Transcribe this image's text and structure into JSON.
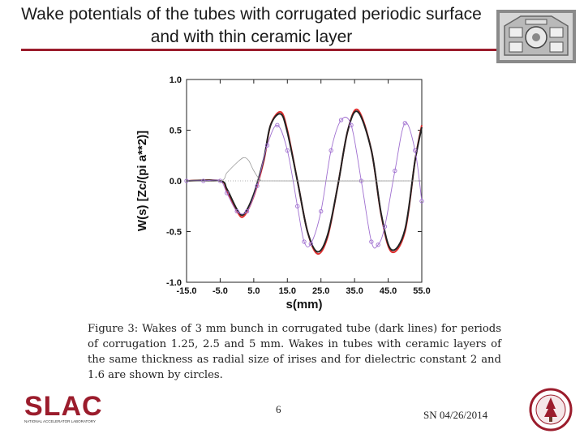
{
  "slide": {
    "title": "Wake potentials of the tubes with corrugated periodic surface and with thin ceramic layer",
    "caption": "Figure 3: Wakes of 3 mm bunch in corrugated tube (dark lines) for periods of corrugation 1.25, 2.5 and 5 mm. Wakes in tubes with ceramic layers of the same thickness as radial size of irises and for dielectric constant 2 and 1.6 are shown by circles.",
    "page_number": "6",
    "date": "SN 04/26/2014"
  },
  "logo": {
    "text": "SLAC",
    "subtext": "NATIONAL ACCELERATOR LABORATORY",
    "color": "#9b1c2c"
  },
  "chart_data": {
    "type": "line",
    "xlabel": "s(mm)",
    "ylabel": "W(s) [Zc/(pi a**2)]",
    "xlim": [
      -15,
      55
    ],
    "ylim": [
      -1.0,
      1.0
    ],
    "xticks": [
      "-15.0",
      "-5.0",
      "5.0",
      "15.0",
      "25.0",
      "35.0",
      "45.0",
      "55.0"
    ],
    "yticks": [
      "1.0",
      "0.5",
      "0.0",
      "-0.5",
      "-1.0"
    ],
    "grid": false,
    "series": [
      {
        "color": "#e03030",
        "style": "line",
        "x": [
          -15,
          -5,
          -3,
          0,
          2,
          5,
          8,
          10,
          13,
          15,
          18,
          21,
          24,
          27,
          30,
          33,
          36,
          40,
          43,
          46,
          50,
          53,
          55
        ],
        "y": [
          0.0,
          0.0,
          -0.1,
          -0.3,
          -0.35,
          -0.15,
          0.2,
          0.55,
          0.68,
          0.5,
          0.0,
          -0.5,
          -0.72,
          -0.55,
          -0.05,
          0.5,
          0.7,
          0.3,
          -0.35,
          -0.7,
          -0.5,
          0.2,
          0.55
        ]
      },
      {
        "color": "#222222",
        "style": "line",
        "x": [
          -15,
          -5,
          -3,
          0,
          2,
          5,
          8,
          10,
          13,
          15,
          18,
          21,
          24,
          27,
          30,
          33,
          36,
          40,
          43,
          46,
          50,
          53,
          55
        ],
        "y": [
          0.0,
          0.0,
          -0.08,
          -0.28,
          -0.33,
          -0.13,
          0.22,
          0.55,
          0.66,
          0.48,
          0.0,
          -0.5,
          -0.7,
          -0.53,
          -0.05,
          0.5,
          0.68,
          0.3,
          -0.34,
          -0.68,
          -0.48,
          0.2,
          0.53
        ]
      },
      {
        "color": "#a070d0",
        "style": "circles",
        "x": [
          -15,
          -10,
          -5,
          -3,
          0,
          3,
          6,
          9,
          12,
          15,
          18,
          20,
          22,
          25,
          28,
          31,
          34,
          37,
          40,
          42,
          44,
          47,
          50,
          53,
          55
        ],
        "y": [
          0.0,
          0.0,
          0.0,
          -0.12,
          -0.3,
          -0.3,
          -0.05,
          0.35,
          0.55,
          0.3,
          -0.25,
          -0.6,
          -0.62,
          -0.3,
          0.3,
          0.6,
          0.55,
          0.0,
          -0.6,
          -0.63,
          -0.45,
          0.1,
          0.57,
          0.3,
          -0.2
        ]
      },
      {
        "color": "#9a9a9a",
        "style": "thin",
        "x": [
          -15,
          -5,
          -3,
          0,
          2,
          3.5,
          5,
          7,
          10,
          55
        ],
        "y": [
          0.0,
          0.0,
          0.08,
          0.18,
          0.23,
          0.2,
          0.1,
          0.01,
          0.0,
          0.0
        ]
      }
    ]
  }
}
